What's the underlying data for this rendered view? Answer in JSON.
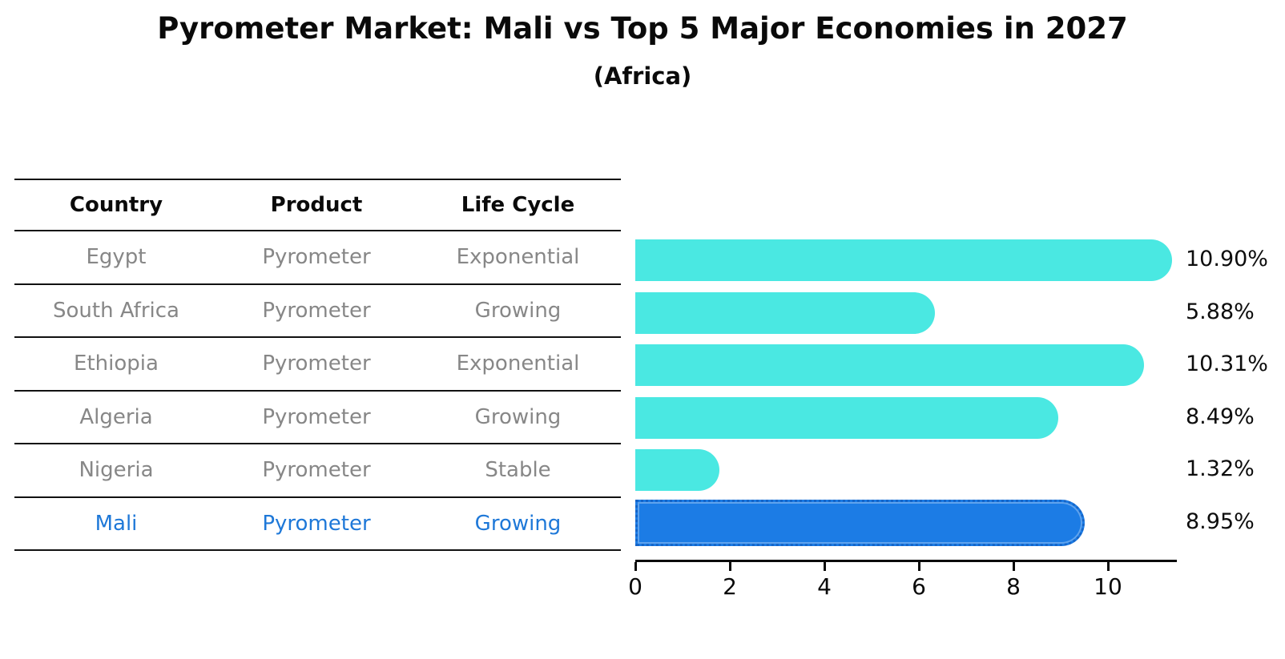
{
  "title": "Pyrometer Market: Mali vs Top 5 Major Economies in 2027",
  "subtitle": "(Africa)",
  "table": {
    "headers": [
      "Country",
      "Product",
      "Life Cycle"
    ],
    "rows": [
      {
        "country": "Egypt",
        "product": "Pyrometer",
        "life_cycle": "Exponential",
        "highlight": false
      },
      {
        "country": "South Africa",
        "product": "Pyrometer",
        "life_cycle": "Growing",
        "highlight": false
      },
      {
        "country": "Ethiopia",
        "product": "Pyrometer",
        "life_cycle": "Exponential",
        "highlight": false
      },
      {
        "country": "Algeria",
        "product": "Pyrometer",
        "life_cycle": "Growing",
        "highlight": false
      },
      {
        "country": "Nigeria",
        "product": "Pyrometer",
        "life_cycle": "Stable",
        "highlight": false
      },
      {
        "country": "Mali",
        "product": "Pyrometer",
        "life_cycle": "Growing",
        "highlight": true
      }
    ]
  },
  "chart_data": {
    "type": "bar",
    "orientation": "horizontal",
    "title": "Pyrometer Market: Mali vs Top 5 Major Economies in 2027",
    "subtitle": "(Africa)",
    "categories": [
      "Egypt",
      "South Africa",
      "Ethiopia",
      "Algeria",
      "Nigeria",
      "Mali"
    ],
    "values": [
      10.9,
      5.88,
      10.31,
      8.49,
      1.32,
      8.95
    ],
    "value_labels": [
      "10.90%",
      "5.88%",
      "10.31%",
      "8.49%",
      "1.32%",
      "8.95%"
    ],
    "x_ticks": [
      0,
      2,
      4,
      6,
      8,
      10
    ],
    "xlim": [
      0,
      11.44
    ],
    "xlabel": "",
    "ylabel": "",
    "grid": false,
    "legend": "none",
    "highlight_index": 5,
    "bar_color": "#4AE8E2",
    "highlight_bar_color": "#1C7CE5"
  },
  "colors": {
    "background": "#FFFFFF",
    "bar_cyan": "#4AE8E2",
    "bar_blue": "#1C7CE5",
    "mali_dot_border": "#1565C8",
    "table_text_gray": "#878787",
    "mali_text_blue": "#1E78D8",
    "rule_black": "#111111",
    "label_black": "#0D0D0D"
  }
}
